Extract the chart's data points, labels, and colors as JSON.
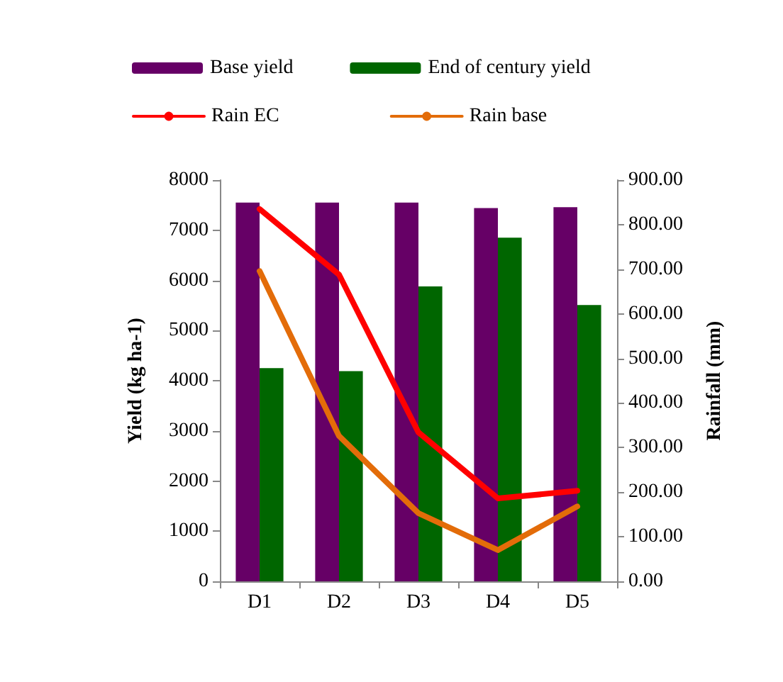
{
  "chart_data": {
    "type": "bar",
    "categories": [
      "D1",
      "D2",
      "D3",
      "D4",
      "D5"
    ],
    "ylabel": "Yield (kg ha-1)",
    "y2label": "Rainfall (mm)",
    "ylim": [
      0,
      8000
    ],
    "yticks": [
      0,
      1000,
      2000,
      3000,
      4000,
      5000,
      6000,
      7000,
      8000
    ],
    "y2lim": [
      0,
      900
    ],
    "y2ticks": [
      {
        "value": 0,
        "label": "0.00"
      },
      {
        "value": 100,
        "label": "100.00"
      },
      {
        "value": 200,
        "label": "200.00"
      },
      {
        "value": 300,
        "label": "300.00"
      },
      {
        "value": 400,
        "label": "400.00"
      },
      {
        "value": 500,
        "label": "500.00"
      },
      {
        "value": 600,
        "label": "600.00"
      },
      {
        "value": 700,
        "label": "700.00"
      },
      {
        "value": 800,
        "label": "800.00"
      },
      {
        "value": 900,
        "label": "900.00"
      }
    ],
    "legend": "top",
    "grid": false,
    "series": [
      {
        "name": "Base yield",
        "color": "#660066",
        "values": [
          7550,
          7550,
          7550,
          7440,
          7460
        ]
      },
      {
        "name": "End of century yield",
        "color": "#006600",
        "values": [
          4250,
          4190,
          5880,
          6850,
          5510
        ]
      },
      {
        "name": "Rain EC",
        "type": "line",
        "axis": "y2",
        "color": "#ff0000",
        "values": [
          835,
          688,
          334,
          186,
          203
        ]
      },
      {
        "name": "Rain base",
        "type": "line",
        "axis": "y2",
        "color": "#e36c09",
        "values": [
          696,
          326,
          153,
          70,
          168
        ]
      }
    ]
  }
}
